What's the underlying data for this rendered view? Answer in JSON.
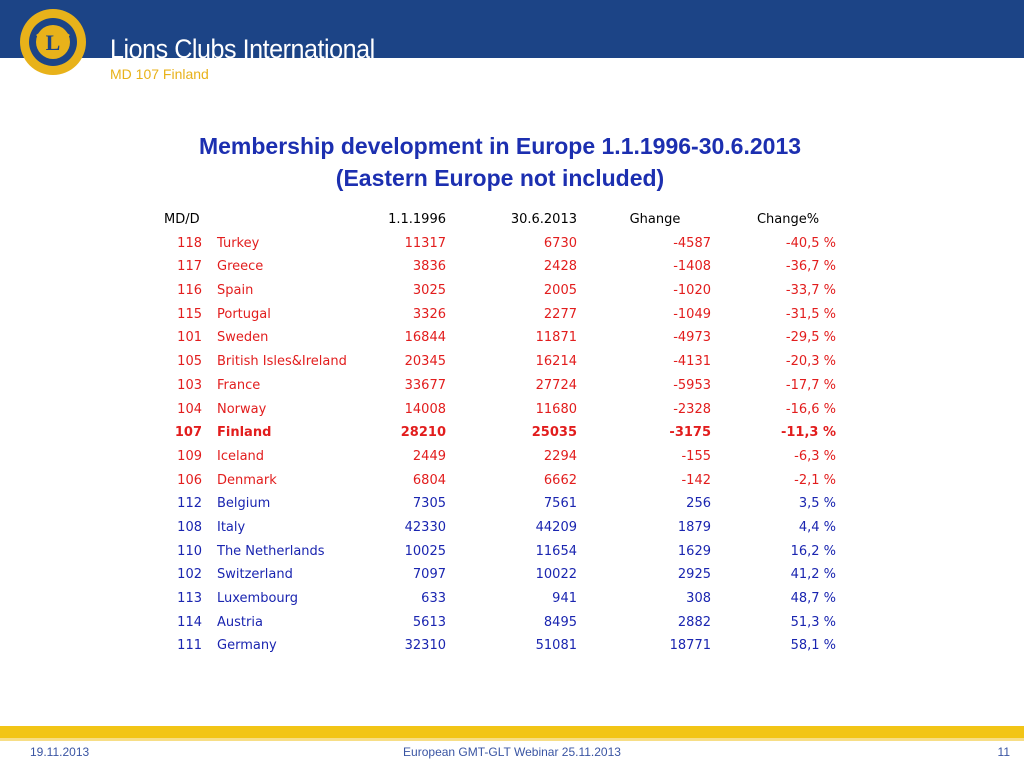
{
  "header": {
    "brand_name": "Lions Clubs International",
    "brand_sub": "MD 107 Finland",
    "logo_text_top": "LIONS",
    "logo_text_bottom": "INTERNATIONAL",
    "logo_letter": "L",
    "colors": {
      "band": "#1c4486",
      "gold": "#e8b21a"
    }
  },
  "title": {
    "line1": "Membership development in Europe 1.1.1996-30.6.2013",
    "line2": "(Eastern Europe not included)"
  },
  "table": {
    "headers": {
      "md": "MD/D",
      "country": "",
      "y1996": "1.1.1996",
      "y2013": "30.6.2013",
      "change": "Ghange",
      "change_pct": "Change%"
    },
    "rows": [
      {
        "md": "118",
        "country": "Turkey",
        "y1996": "11317",
        "y2013": "6730",
        "change": "-4587",
        "change_pct": "-40,5 %"
      },
      {
        "md": "117",
        "country": "Greece",
        "y1996": "3836",
        "y2013": "2428",
        "change": "-1408",
        "change_pct": "-36,7 %"
      },
      {
        "md": "116",
        "country": "Spain",
        "y1996": "3025",
        "y2013": "2005",
        "change": "-1020",
        "change_pct": "-33,7 %"
      },
      {
        "md": "115",
        "country": "Portugal",
        "y1996": "3326",
        "y2013": "2277",
        "change": "-1049",
        "change_pct": "-31,5 %"
      },
      {
        "md": "101",
        "country": "Sweden",
        "y1996": "16844",
        "y2013": "11871",
        "change": "-4973",
        "change_pct": "-29,5 %"
      },
      {
        "md": "105",
        "country": "British Isles&Ireland",
        "y1996": "20345",
        "y2013": "16214",
        "change": "-4131",
        "change_pct": "-20,3 %"
      },
      {
        "md": "103",
        "country": "France",
        "y1996": "33677",
        "y2013": "27724",
        "change": "-5953",
        "change_pct": "-17,7 %"
      },
      {
        "md": "104",
        "country": "Norway",
        "y1996": "14008",
        "y2013": "11680",
        "change": "-2328",
        "change_pct": "-16,6 %"
      },
      {
        "md": "107",
        "country": "Finland",
        "y1996": "28210",
        "y2013": "25035",
        "change": "-3175",
        "change_pct": "-11,3 %"
      },
      {
        "md": "109",
        "country": "Iceland",
        "y1996": "2449",
        "y2013": "2294",
        "change": "-155",
        "change_pct": "-6,3 %"
      },
      {
        "md": "106",
        "country": "Denmark",
        "y1996": "6804",
        "y2013": "6662",
        "change": "-142",
        "change_pct": "-2,1 %"
      },
      {
        "md": "112",
        "country": "Belgium",
        "y1996": "7305",
        "y2013": "7561",
        "change": "256",
        "change_pct": "3,5 %"
      },
      {
        "md": "108",
        "country": "Italy",
        "y1996": "42330",
        "y2013": "44209",
        "change": "1879",
        "change_pct": "4,4 %"
      },
      {
        "md": "110",
        "country": "The Netherlands",
        "y1996": "10025",
        "y2013": "11654",
        "change": "1629",
        "change_pct": "16,2 %"
      },
      {
        "md": "102",
        "country": "Switzerland",
        "y1996": "7097",
        "y2013": "10022",
        "change": "2925",
        "change_pct": "41,2 %"
      },
      {
        "md": "113",
        "country": "Luxembourg",
        "y1996": "633",
        "y2013": "941",
        "change": "308",
        "change_pct": "48,7 %"
      },
      {
        "md": "114",
        "country": "Austria",
        "y1996": "5613",
        "y2013": "8495",
        "change": "2882",
        "change_pct": "51,3 %"
      },
      {
        "md": "111",
        "country": "Germany",
        "y1996": "32310",
        "y2013": "51081",
        "change": "18771",
        "change_pct": "58,1 %"
      }
    ],
    "colors": {
      "decline": "#e21d1d",
      "growth": "#1a25b0",
      "header": "#000000"
    }
  },
  "footer": {
    "date": "19.11.2013",
    "event": "European GMT-GLT Webinar 25.11.2013",
    "page": "11"
  }
}
